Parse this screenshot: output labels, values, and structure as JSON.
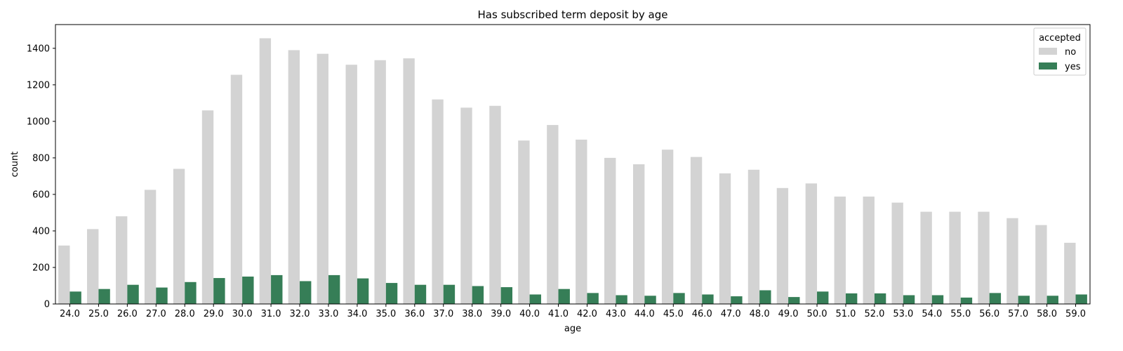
{
  "chart_data": {
    "type": "bar",
    "title": "Has subscribed term deposit by age",
    "xlabel": "age",
    "ylabel": "count",
    "ylim": [
      0,
      1530
    ],
    "yticks": [
      0,
      200,
      400,
      600,
      800,
      1000,
      1200,
      1400
    ],
    "categories": [
      "24.0",
      "25.0",
      "26.0",
      "27.0",
      "28.0",
      "29.0",
      "30.0",
      "31.0",
      "32.0",
      "33.0",
      "34.0",
      "35.0",
      "36.0",
      "37.0",
      "38.0",
      "39.0",
      "40.0",
      "41.0",
      "42.0",
      "43.0",
      "44.0",
      "45.0",
      "46.0",
      "47.0",
      "48.0",
      "49.0",
      "50.0",
      "51.0",
      "52.0",
      "53.0",
      "54.0",
      "55.0",
      "56.0",
      "57.0",
      "58.0",
      "59.0"
    ],
    "legend": {
      "title": "accepted",
      "placement": "upper right"
    },
    "series": [
      {
        "name": "no",
        "color": "#d3d3d3",
        "values": [
          320,
          410,
          480,
          625,
          740,
          1060,
          1255,
          1455,
          1390,
          1370,
          1310,
          1335,
          1345,
          1120,
          1075,
          1085,
          895,
          980,
          900,
          800,
          765,
          845,
          805,
          715,
          735,
          635,
          660,
          588,
          588,
          555,
          505,
          505,
          505,
          470,
          432,
          335
        ]
      },
      {
        "name": "yes",
        "color": "#367e57",
        "values": [
          68,
          82,
          105,
          90,
          120,
          142,
          150,
          158,
          125,
          158,
          140,
          115,
          105,
          105,
          98,
          92,
          52,
          82,
          60,
          48,
          45,
          60,
          52,
          42,
          75,
          38,
          68,
          58,
          58,
          48,
          48,
          35,
          60,
          45,
          45,
          52
        ]
      }
    ]
  }
}
